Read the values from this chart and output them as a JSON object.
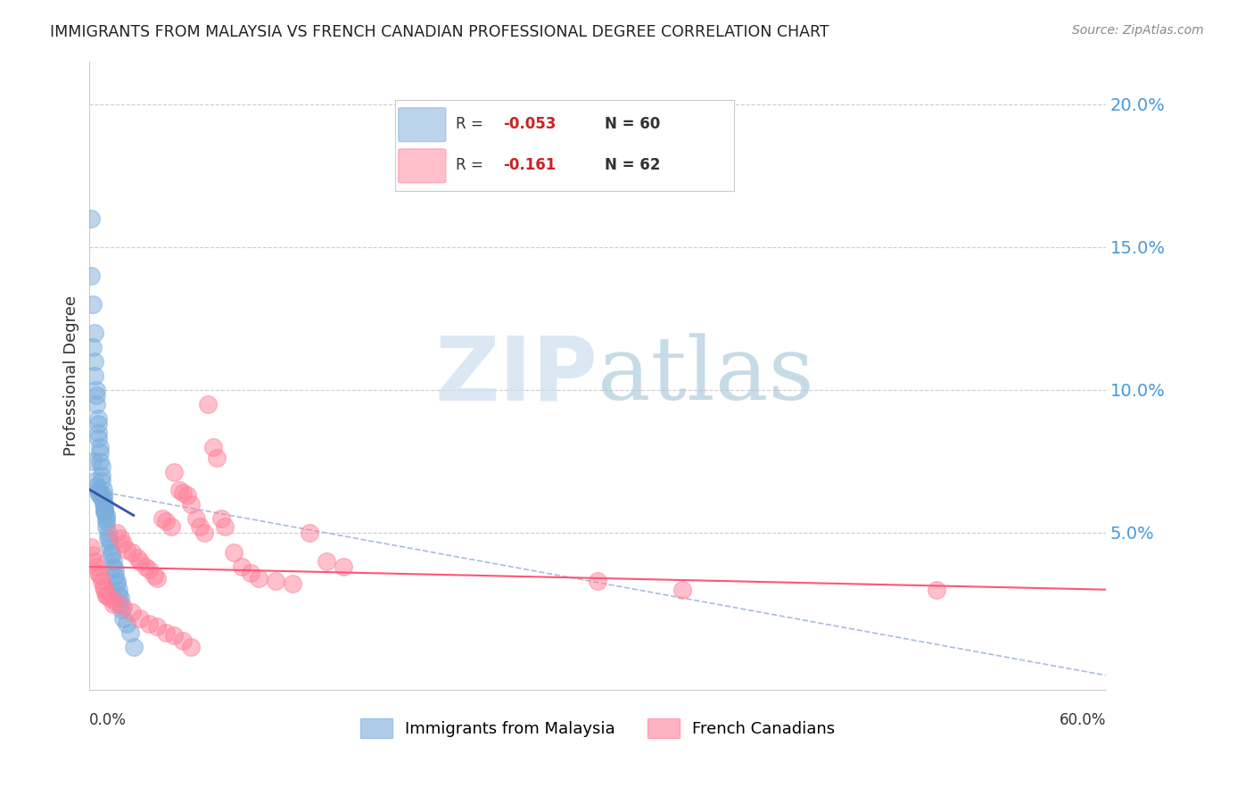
{
  "title": "IMMIGRANTS FROM MALAYSIA VS FRENCH CANADIAN PROFESSIONAL DEGREE CORRELATION CHART",
  "source": "Source: ZipAtlas.com",
  "ylabel": "Professional Degree",
  "right_ytick_labels": [
    "20.0%",
    "15.0%",
    "10.0%",
    "5.0%"
  ],
  "right_ytick_values": [
    0.2,
    0.15,
    0.1,
    0.05
  ],
  "legend_series": [
    {
      "label": "Immigrants from Malaysia",
      "R": -0.053,
      "N": 60,
      "color": "#6699CC"
    },
    {
      "label": "French Canadians",
      "R": -0.161,
      "N": 62,
      "color": "#FF8099"
    }
  ],
  "watermark_zip": "ZIP",
  "watermark_atlas": "atlas",
  "xmin": 0.0,
  "xmax": 0.6,
  "ymin": -0.005,
  "ymax": 0.215,
  "blue_scatter": {
    "x": [
      0.001,
      0.001,
      0.002,
      0.002,
      0.003,
      0.003,
      0.003,
      0.004,
      0.004,
      0.004,
      0.005,
      0.005,
      0.005,
      0.005,
      0.006,
      0.006,
      0.006,
      0.007,
      0.007,
      0.007,
      0.008,
      0.008,
      0.008,
      0.009,
      0.009,
      0.009,
      0.01,
      0.01,
      0.01,
      0.011,
      0.011,
      0.012,
      0.012,
      0.013,
      0.013,
      0.014,
      0.014,
      0.015,
      0.015,
      0.016,
      0.016,
      0.017,
      0.017,
      0.018,
      0.018,
      0.019,
      0.02,
      0.022,
      0.024,
      0.026,
      0.005,
      0.006,
      0.007,
      0.008,
      0.009,
      0.01,
      0.003,
      0.004,
      0.005,
      0.002
    ],
    "y": [
      0.16,
      0.14,
      0.13,
      0.115,
      0.12,
      0.11,
      0.105,
      0.1,
      0.098,
      0.095,
      0.09,
      0.088,
      0.085,
      0.083,
      0.08,
      0.078,
      0.075,
      0.073,
      0.07,
      0.068,
      0.065,
      0.063,
      0.062,
      0.06,
      0.058,
      0.057,
      0.055,
      0.054,
      0.052,
      0.05,
      0.048,
      0.047,
      0.045,
      0.043,
      0.042,
      0.04,
      0.038,
      0.037,
      0.035,
      0.033,
      0.032,
      0.03,
      0.028,
      0.027,
      0.025,
      0.023,
      0.02,
      0.018,
      0.015,
      0.01,
      0.065,
      0.063,
      0.062,
      0.06,
      0.058,
      0.056,
      0.068,
      0.066,
      0.064,
      0.075
    ]
  },
  "pink_scatter": {
    "x": [
      0.001,
      0.002,
      0.003,
      0.004,
      0.005,
      0.006,
      0.007,
      0.008,
      0.009,
      0.01,
      0.012,
      0.014,
      0.016,
      0.018,
      0.02,
      0.022,
      0.025,
      0.028,
      0.03,
      0.033,
      0.035,
      0.038,
      0.04,
      0.043,
      0.045,
      0.048,
      0.05,
      0.053,
      0.055,
      0.058,
      0.06,
      0.063,
      0.065,
      0.068,
      0.07,
      0.073,
      0.075,
      0.078,
      0.08,
      0.085,
      0.09,
      0.095,
      0.1,
      0.11,
      0.12,
      0.13,
      0.14,
      0.15,
      0.3,
      0.35,
      0.01,
      0.015,
      0.02,
      0.025,
      0.03,
      0.035,
      0.04,
      0.045,
      0.05,
      0.055,
      0.06,
      0.5
    ],
    "y": [
      0.045,
      0.042,
      0.04,
      0.038,
      0.036,
      0.035,
      0.033,
      0.031,
      0.03,
      0.028,
      0.027,
      0.025,
      0.05,
      0.048,
      0.046,
      0.044,
      0.043,
      0.041,
      0.04,
      0.038,
      0.037,
      0.035,
      0.034,
      0.055,
      0.054,
      0.052,
      0.071,
      0.065,
      0.064,
      0.063,
      0.06,
      0.055,
      0.052,
      0.05,
      0.095,
      0.08,
      0.076,
      0.055,
      0.052,
      0.043,
      0.038,
      0.036,
      0.034,
      0.033,
      0.032,
      0.05,
      0.04,
      0.038,
      0.033,
      0.03,
      0.028,
      0.026,
      0.024,
      0.022,
      0.02,
      0.018,
      0.017,
      0.015,
      0.014,
      0.012,
      0.01,
      0.03
    ]
  },
  "blue_line": {
    "x0": 0.0,
    "x1": 0.026,
    "y0": 0.065,
    "y1": 0.056
  },
  "pink_line": {
    "x0": 0.0,
    "x1": 0.6,
    "y0": 0.038,
    "y1": 0.03
  },
  "dash_line": {
    "x0": 0.0,
    "x1": 0.6,
    "y0": 0.065,
    "y1": 0.0
  },
  "grid_color": "#CCCCCC",
  "right_label_color": "#4499DD",
  "scatter_blue_color": "#7AADDD",
  "scatter_pink_color": "#FF8099",
  "trend_blue_color": "#3355AA",
  "trend_pink_color": "#FF5577",
  "trend_dash_color": "#AABBDD"
}
